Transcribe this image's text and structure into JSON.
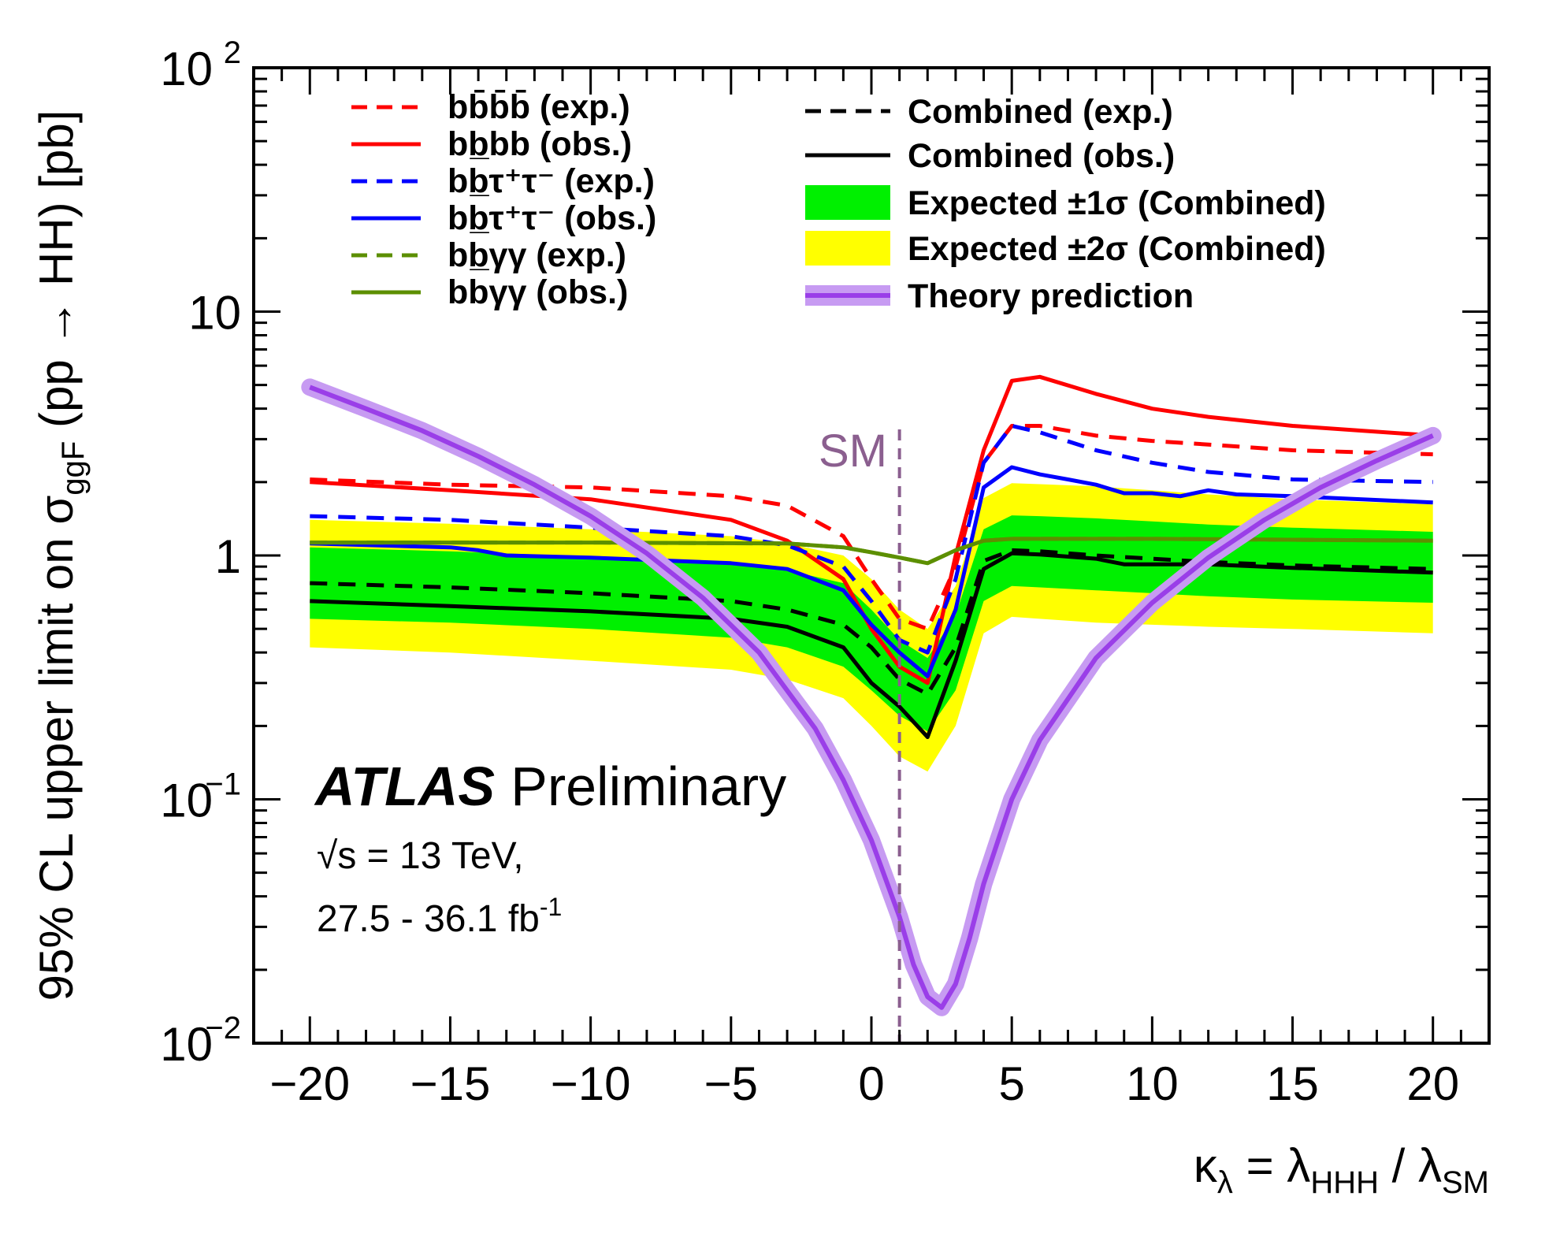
{
  "chart_data": {
    "type": "line",
    "scale": {
      "x": "linear",
      "y": "log"
    },
    "xlim": [
      -22,
      22
    ],
    "ylim": [
      0.01,
      100
    ],
    "x_ticks": [
      {
        "v": -20,
        "label": "−20"
      },
      {
        "v": -15,
        "label": "−15"
      },
      {
        "v": -10,
        "label": "−10"
      },
      {
        "v": -5,
        "label": "−5"
      },
      {
        "v": 0,
        "label": "0"
      },
      {
        "v": 5,
        "label": "5"
      },
      {
        "v": 10,
        "label": "10"
      },
      {
        "v": 15,
        "label": "15"
      },
      {
        "v": 20,
        "label": "20"
      }
    ],
    "y_ticks": [
      {
        "v": 100,
        "base": "10",
        "exp": "2"
      },
      {
        "v": 10,
        "base": "10",
        "exp": ""
      },
      {
        "v": 1,
        "base": "1",
        "exp": ""
      },
      {
        "v": 0.1,
        "base": "10",
        "exp": "−1"
      },
      {
        "v": 0.01,
        "base": "10",
        "exp": "−2"
      }
    ],
    "ylabel": {
      "pre": "95% CL upper limit on σ",
      "sub": "ggF",
      "post": " (pp → HH) [pb]"
    },
    "xlabel": {
      "pre": "κ",
      "sub1": "λ",
      "mid": " = λ",
      "sub2": "HHH",
      "mid2": " / λ",
      "sub3": "SM"
    },
    "experiment": "ATLAS",
    "status": "Preliminary",
    "energy": "√s = 13 TeV,",
    "luminosity": {
      "text": "27.5 - 36.1 fb",
      "sup": "-1"
    },
    "sm_marker": {
      "x": 1,
      "label": "SM",
      "color": "#8b5f8f"
    },
    "bands": [
      {
        "name": "Expected ±2σ (Combined)",
        "color": "#ffff00",
        "x": [
          -20,
          -15,
          -10,
          -5,
          -3,
          -1,
          0,
          1,
          2,
          3,
          4,
          5,
          6,
          8,
          10,
          12,
          15,
          20
        ],
        "low": [
          0.42,
          0.4,
          0.37,
          0.34,
          0.31,
          0.26,
          0.2,
          0.15,
          0.13,
          0.2,
          0.48,
          0.56,
          0.55,
          0.53,
          0.52,
          0.51,
          0.5,
          0.48
        ],
        "high": [
          1.4,
          1.35,
          1.28,
          1.2,
          1.12,
          1.0,
          0.8,
          0.6,
          0.5,
          0.75,
          1.72,
          1.98,
          1.96,
          1.92,
          1.85,
          1.78,
          1.7,
          1.62
        ]
      },
      {
        "name": "Expected ±1σ (Combined)",
        "color": "#00f000",
        "x": [
          -20,
          -15,
          -10,
          -5,
          -3,
          -1,
          0,
          1,
          2,
          3,
          4,
          5,
          6,
          8,
          10,
          12,
          15,
          20
        ],
        "low": [
          0.55,
          0.53,
          0.5,
          0.46,
          0.42,
          0.35,
          0.28,
          0.22,
          0.19,
          0.28,
          0.65,
          0.75,
          0.74,
          0.72,
          0.7,
          0.68,
          0.66,
          0.64
        ],
        "high": [
          1.08,
          1.04,
          0.99,
          0.93,
          0.87,
          0.77,
          0.6,
          0.45,
          0.38,
          0.57,
          1.28,
          1.46,
          1.45,
          1.42,
          1.38,
          1.34,
          1.3,
          1.25
        ]
      }
    ],
    "series": [
      {
        "name": "Combined (exp.)",
        "color": "#000000",
        "dash": true,
        "width": 5,
        "x": [
          -20,
          -15,
          -10,
          -5,
          -3,
          -1,
          0,
          1,
          2,
          3,
          4,
          5,
          6,
          8,
          10,
          12,
          15,
          20
        ],
        "y": [
          0.77,
          0.74,
          0.7,
          0.65,
          0.6,
          0.52,
          0.42,
          0.31,
          0.27,
          0.42,
          0.95,
          1.05,
          1.04,
          1.0,
          0.97,
          0.94,
          0.91,
          0.88
        ]
      },
      {
        "name": "Combined (obs.)",
        "color": "#000000",
        "dash": false,
        "width": 5,
        "x": [
          -20,
          -15,
          -10,
          -5,
          -3,
          -1,
          0,
          1,
          2,
          3,
          4,
          5,
          6,
          8,
          9,
          10,
          12,
          15,
          20
        ],
        "y": [
          0.65,
          0.62,
          0.59,
          0.55,
          0.51,
          0.42,
          0.3,
          0.24,
          0.18,
          0.37,
          0.88,
          1.02,
          1.01,
          0.97,
          0.92,
          0.92,
          0.92,
          0.89,
          0.85
        ]
      },
      {
        "name": "bbbb (exp.)",
        "color": "#ff0000",
        "dash": true,
        "width": 5,
        "x": [
          -20,
          -15,
          -10,
          -5,
          -3,
          -1,
          0,
          1,
          2,
          3,
          4,
          5,
          6,
          8,
          10,
          12,
          15,
          20
        ],
        "y": [
          2.05,
          1.95,
          1.9,
          1.75,
          1.6,
          1.2,
          0.8,
          0.55,
          0.5,
          0.9,
          2.4,
          3.4,
          3.4,
          3.1,
          2.95,
          2.85,
          2.7,
          2.6
        ]
      },
      {
        "name": "bbbb (obs.)",
        "color": "#ff0000",
        "dash": false,
        "width": 5,
        "x": [
          -20,
          -15,
          -10,
          -5,
          -3,
          -1,
          0,
          1,
          2,
          3,
          4,
          5,
          6,
          8,
          10,
          12,
          15,
          20
        ],
        "y": [
          2.0,
          1.85,
          1.7,
          1.4,
          1.15,
          0.8,
          0.5,
          0.35,
          0.3,
          1.0,
          2.7,
          5.2,
          5.4,
          4.6,
          4.0,
          3.7,
          3.4,
          3.1
        ]
      },
      {
        "name": "bbτ⁺τ⁻ (exp.)",
        "color": "#0000ff",
        "dash": true,
        "width": 5,
        "x": [
          -20,
          -15,
          -10,
          -5,
          -3,
          -1,
          0,
          1,
          2,
          3,
          4,
          5,
          6,
          8,
          10,
          12,
          15,
          20
        ],
        "y": [
          1.45,
          1.4,
          1.3,
          1.2,
          1.1,
          0.9,
          0.65,
          0.45,
          0.4,
          0.8,
          2.4,
          3.4,
          3.2,
          2.7,
          2.4,
          2.2,
          2.05,
          2.0
        ]
      },
      {
        "name": "bbτ⁺τ⁻ (obs.)",
        "color": "#0000ff",
        "dash": false,
        "width": 5,
        "x": [
          -20,
          -15,
          -14,
          -13,
          -10,
          -5,
          -3,
          -1,
          0,
          1,
          2,
          3,
          4,
          5,
          6,
          7,
          8,
          9,
          10,
          11,
          12,
          13,
          15,
          20
        ],
        "y": [
          1.12,
          1.08,
          1.05,
          1.0,
          0.98,
          0.93,
          0.88,
          0.72,
          0.52,
          0.4,
          0.32,
          0.6,
          1.9,
          2.3,
          2.15,
          2.05,
          1.95,
          1.8,
          1.8,
          1.75,
          1.85,
          1.78,
          1.75,
          1.65
        ]
      },
      {
        "name": "bbγγ (exp.)",
        "color": "#5c8f00",
        "dash": true,
        "width": 5,
        "x": [
          -20,
          -10,
          -3,
          -1,
          0,
          1,
          2,
          3,
          4,
          5,
          10,
          20
        ],
        "y": [
          1.13,
          1.13,
          1.12,
          1.08,
          1.03,
          0.98,
          0.93,
          1.05,
          1.15,
          1.17,
          1.17,
          1.15
        ]
      },
      {
        "name": "bbγγ (obs.)",
        "color": "#5c8f00",
        "dash": false,
        "width": 5,
        "x": [
          -20,
          -10,
          -3,
          -1,
          0,
          1,
          2,
          3,
          4,
          5,
          10,
          20
        ],
        "y": [
          1.13,
          1.13,
          1.12,
          1.08,
          1.03,
          0.98,
          0.93,
          1.05,
          1.15,
          1.17,
          1.17,
          1.15
        ]
      },
      {
        "name": "Theory prediction",
        "color": "#9a3ee8",
        "band_color": "#c79bf2",
        "dash": false,
        "width": 6,
        "theory": true,
        "x": [
          -20,
          -18,
          -16,
          -14,
          -12,
          -10,
          -8,
          -6,
          -4,
          -2,
          -1,
          0,
          1,
          1.5,
          2,
          2.5,
          3,
          3.5,
          4,
          5,
          6,
          8,
          10,
          12,
          14,
          16,
          18,
          20
        ],
        "y": [
          4.9,
          4.0,
          3.25,
          2.55,
          1.95,
          1.45,
          1.02,
          0.67,
          0.4,
          0.195,
          0.12,
          0.068,
          0.033,
          0.021,
          0.0155,
          0.014,
          0.0175,
          0.027,
          0.045,
          0.1,
          0.175,
          0.38,
          0.64,
          0.98,
          1.4,
          1.9,
          2.45,
          3.1
        ]
      }
    ],
    "legend_left": [
      {
        "key": "bbbb (exp.)",
        "label": "bb̄b̄b̄ (exp.)"
      },
      {
        "key": "bbbb (obs.)",
        "label": "bb̲bb (obs.)"
      },
      {
        "key": "bbτ⁺τ⁻ (exp.)",
        "label": "bb̲τ⁺τ⁻ (exp.)"
      },
      {
        "key": "bbτ⁺τ⁻ (obs.)",
        "label": "bb̲τ⁺τ⁻ (obs.)"
      },
      {
        "key": "bbγγ (exp.)",
        "label": "bb̲γγ (exp.)"
      },
      {
        "key": "bbγγ (obs.)",
        "label": "bbγγ (obs.)"
      }
    ],
    "legend_right": [
      {
        "key": "Combined (exp.)",
        "kind": "line",
        "label": "Combined (exp.)"
      },
      {
        "key": "Combined (obs.)",
        "kind": "line",
        "label": "Combined (obs.)"
      },
      {
        "key": "Expected ±1σ (Combined)",
        "kind": "box",
        "label": "Expected ±1σ (Combined)"
      },
      {
        "key": "Expected ±2σ (Combined)",
        "kind": "box",
        "label": "Expected ±2σ (Combined)"
      },
      {
        "key": "Theory prediction",
        "kind": "theory",
        "label": "Theory prediction"
      }
    ]
  }
}
